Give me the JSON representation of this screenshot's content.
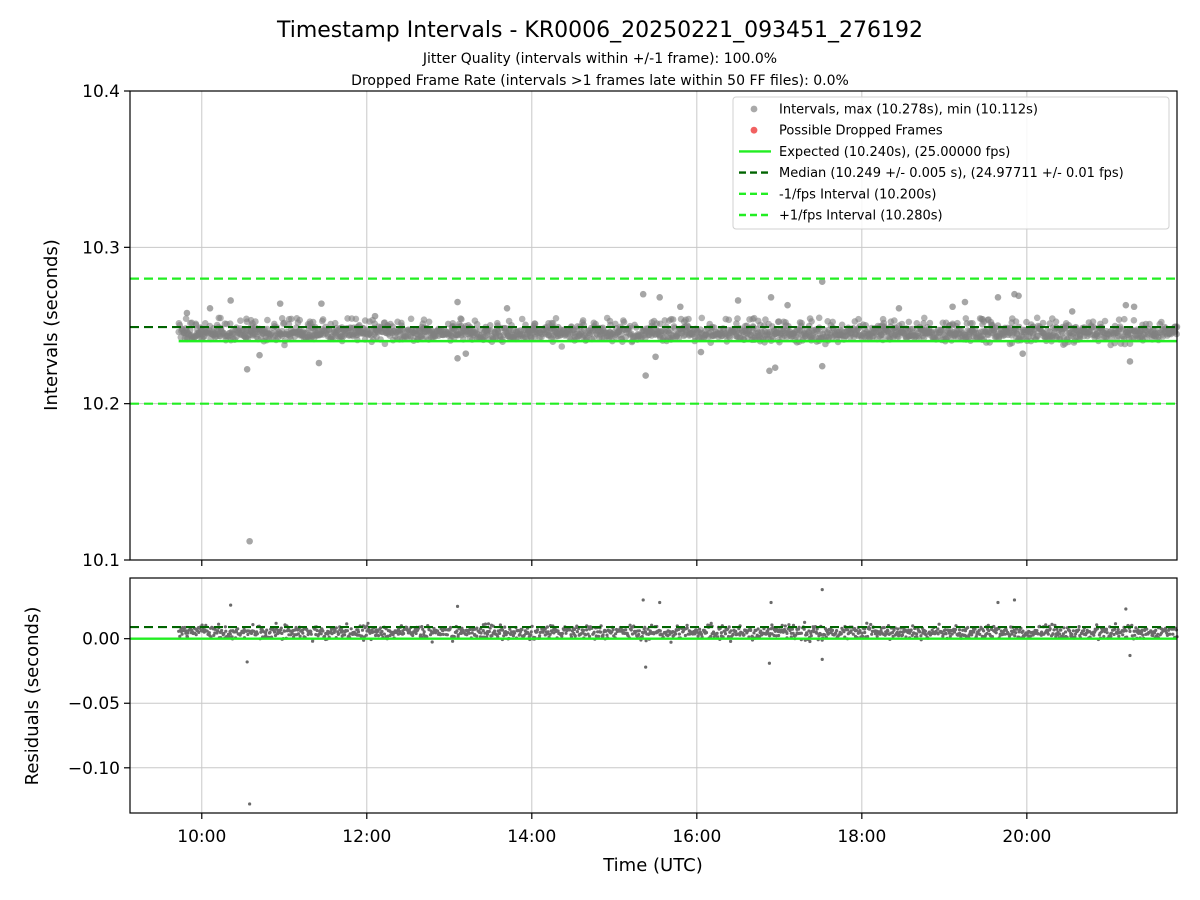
{
  "chart_data": {
    "type": "scatter",
    "title": "Timestamp Intervals - KR0006_20250221_093451_276192",
    "subtitle1": "Jitter Quality (intervals within +/-1 frame): 100.0%",
    "subtitle2": "Dropped Frame Rate (intervals >1 frames late within 50 FF files): 0.0%",
    "xlabel": "Time (UTC)",
    "xlim": [
      9.13,
      21.82
    ],
    "x_ticks": [
      10,
      12,
      14,
      16,
      18,
      20
    ],
    "x_tick_labels": [
      "10:00",
      "12:00",
      "14:00",
      "16:00",
      "18:00",
      "20:00"
    ],
    "x_data_range": [
      9.72,
      21.82
    ],
    "grid": true,
    "colors": {
      "intervals": "#808080",
      "dropped": "#f05050",
      "expected": "#22ee22",
      "median": "#006400",
      "bounds": "#22ee22"
    },
    "top": {
      "ylabel": "Intervals (seconds)",
      "ylim": [
        10.1,
        10.4
      ],
      "y_ticks": [
        10.1,
        10.2,
        10.3,
        10.4
      ],
      "y_tick_labels": [
        "10.1",
        "10.2",
        "10.3",
        "10.4"
      ],
      "expected": 10.24,
      "median": 10.249,
      "lower": 10.2,
      "upper": 10.28,
      "band": [
        10.235,
        10.255
      ],
      "outliers": [
        [
          10.58,
          10.112
        ],
        [
          9.82,
          10.258
        ],
        [
          10.1,
          10.261
        ],
        [
          10.35,
          10.266
        ],
        [
          10.55,
          10.222
        ],
        [
          10.7,
          10.231
        ],
        [
          10.95,
          10.264
        ],
        [
          11.45,
          10.264
        ],
        [
          11.42,
          10.226
        ],
        [
          12.1,
          10.256
        ],
        [
          13.1,
          10.265
        ],
        [
          13.2,
          10.232
        ],
        [
          13.1,
          10.229
        ],
        [
          13.7,
          10.261
        ],
        [
          15.35,
          10.27
        ],
        [
          15.38,
          10.218
        ],
        [
          15.55,
          10.268
        ],
        [
          15.5,
          10.23
        ],
        [
          15.8,
          10.262
        ],
        [
          16.05,
          10.233
        ],
        [
          16.5,
          10.266
        ],
        [
          16.9,
          10.268
        ],
        [
          16.88,
          10.221
        ],
        [
          16.95,
          10.223
        ],
        [
          17.1,
          10.263
        ],
        [
          17.52,
          10.278
        ],
        [
          17.52,
          10.224
        ],
        [
          18.45,
          10.261
        ],
        [
          19.1,
          10.262
        ],
        [
          19.25,
          10.265
        ],
        [
          19.65,
          10.268
        ],
        [
          19.85,
          10.27
        ],
        [
          19.9,
          10.269
        ],
        [
          20.55,
          10.259
        ],
        [
          21.2,
          10.263
        ],
        [
          21.25,
          10.227
        ],
        [
          21.3,
          10.262
        ],
        [
          19.95,
          10.232
        ]
      ],
      "legend": [
        {
          "label": "Intervals, max (10.278s), min (10.112s)",
          "kind": "dot",
          "color": "#a0a0a0"
        },
        {
          "label": "Possible Dropped Frames",
          "kind": "dot",
          "color": "#f05050"
        },
        {
          "label": "Expected (10.240s), (25.00000 fps)",
          "kind": "solid",
          "color": "#22ee22"
        },
        {
          "label": "Median (10.249 +/- 0.005 s), (24.97711 +/- 0.01 fps)",
          "kind": "dash",
          "color": "#006400"
        },
        {
          "label": "-1/fps Interval (10.200s)",
          "kind": "dash",
          "color": "#22ee22"
        },
        {
          "label": "+1/fps Interval (10.280s)",
          "kind": "dash",
          "color": "#22ee22"
        }
      ]
    },
    "bottom": {
      "ylabel": "Residuals (seconds)",
      "ylim": [
        -0.135,
        0.047
      ],
      "y_ticks": [
        0.0,
        -0.05,
        -0.1
      ],
      "y_tick_labels": [
        "0.00",
        "−0.05",
        "−0.10"
      ],
      "expected": 0.0,
      "median": 0.009,
      "band": [
        -0.005,
        0.015
      ],
      "outliers": [
        [
          10.58,
          -0.128
        ],
        [
          10.35,
          0.026
        ],
        [
          10.55,
          -0.018
        ],
        [
          13.1,
          0.025
        ],
        [
          15.35,
          0.03
        ],
        [
          15.38,
          -0.022
        ],
        [
          16.88,
          -0.019
        ],
        [
          17.52,
          0.038
        ],
        [
          17.52,
          -0.016
        ],
        [
          19.85,
          0.03
        ],
        [
          19.65,
          0.028
        ],
        [
          21.25,
          -0.013
        ],
        [
          21.2,
          0.023
        ],
        [
          16.9,
          0.028
        ],
        [
          15.55,
          0.028
        ]
      ]
    }
  }
}
